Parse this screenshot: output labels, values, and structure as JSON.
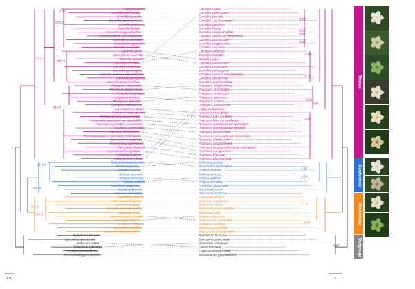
{
  "left_tree": {
    "taxa": [
      "Camellia huana",
      "Camellia tuberculata",
      "Camellia fluviatilis",
      "Camellia szechuanensis",
      "Camellia luteoflora",
      "Camellia flavida",
      "Camellia longipedicellata",
      "Camellia pitardii var compressa",
      "Camellia assimiloides",
      "Camellia fangpinensis",
      "Camellia cuspidata",
      "Camellia grijsii",
      "Camellia semiserrata",
      "Camellia fluviatilis",
      "Camellia cordifolia",
      "Camellia longissima",
      "Camellia gymnogyna",
      "Camellia sinensis var pubilimba",
      "Camellia pilosperma",
      "Camellia ampelovitifolia",
      "Polyspora chrysandra",
      "Polyspora dalgleishiana",
      "Polyspora longicarpa",
      "Polyspora axillaris",
      "Polyspora speciosa",
      "Polyspora hainanensis",
      "Apterosperma oblata",
      "Pyrenaria hirta var hirta",
      "Pyrenaria hirta var cordatula",
      "Pyrenaria spectabilis var spectabilis",
      "Pyrenaria spectabilis var greenlei",
      "Pyrenaria jonquierana",
      "Pyrenaria shinkoensis",
      "Pyrenaria jonquierana subsp multisepala",
      "Pyrenaria menglaensis",
      "Pyrenaria pingpienensis",
      "Pyrenaria khasiana",
      "Pyrenaria oblongicarpa",
      "Laplacea fruticosa",
      "Apterosperma oblata",
      "Schima brevipedicellata",
      "Schima argentea",
      "Schima superba",
      "Schima sericans",
      "Schima noronhae",
      "Schima wallichii",
      "Franklinia alatamaha",
      "Gordonia brevisii",
      "Gordonia lasianthus",
      "Stewartia sinensis",
      "Stewartia rubiginosa",
      "Stewartia rostrata",
      "Stewartia pseudocamellia",
      "Stewartia ovata",
      "Stewartia pteropetiolata",
      "Stewartia calcicola",
      "Stewartia cordifolia",
      "Stewartia crassifolia",
      "Stewartia malacodendron",
      "Symplocos tinctoria",
      "Symplocos paniculata",
      "Galax urceolata",
      "Sinojackia xylocarpa",
      "Eurya acuminatissima",
      "Ternstroemia gymnanthera"
    ],
    "support": [
      "1/1.0",
      "97/1.0",
      "95/1.0",
      "98/1.0",
      "72/0.84",
      "91/1.0",
      "95/1.0",
      "99/1.0"
    ]
  },
  "right_tree": {
    "taxa": [
      "Camellia huana",
      "Camellia tuberculata",
      "Camellia fluviatilis",
      "Camellia szechuanensis",
      "Camellia luteoflora",
      "Camellia flavida",
      "Camellia longipedicellata",
      "Camellia pitardii var compressa",
      "Camellia assimiloides",
      "Camellia fangpinensis",
      "Camellia cuspidata",
      "Camellia cordifolia",
      "Camellia fluviatilis",
      "Camellia grijsii",
      "Camellia semiserrata",
      "Camellia longissima",
      "Camellia gymnogyna",
      "Camellia sinensis var pubilimba",
      "Camellia pilosperma",
      "Camellia ampelovitifolia",
      "Polyspora dalgleishiana",
      "Polyspora chrysandra",
      "Polyspora longicarpa",
      "Polyspora speciosa",
      "Polyspora axillaris",
      "Polyspora hainanensis",
      "Laplacea fruticosa",
      "Apterosperma oblata",
      "Pyrenaria hirta var hirta",
      "Pyrenaria hirta var cordatula",
      "Pyrenaria spectabilis var spectabilis",
      "Pyrenaria spectabilis var greenlei",
      "Pyrenaria jonquierana",
      "Pyrenaria microcarpa var microcarpa",
      "Pyrenaria shinkoensis",
      "Pyrenaria pingpienensis",
      "Pyrenaria jonquierana subsp multisepala",
      "Pyrenaria menglaensis",
      "Pyrenaria khasiana",
      "Pyrenaria oblongicarpa",
      "Schima argentea",
      "Schima brevipedicellata",
      "Schima superba",
      "Schima sericans",
      "Schima wallichii",
      "Schima noronhae",
      "Franklinia alatamaha",
      "Gordonia brevisii",
      "Gordonia lasianthus",
      "Stewartia sinensis",
      "Stewartia rubiginosa",
      "Stewartia rostrata",
      "Stewartia pseudocamellia",
      "Stewartia ovata",
      "Stewartia calcicola",
      "Stewartia pteropetiolata",
      "Stewartia cordifolia",
      "Stewartia crassifolia",
      "Stewartia malacodendron",
      "Symplocos tinctoria",
      "Symplocos paniculata",
      "Sinojackia xylocarpa",
      "Galax urceolata",
      "Eurya acuminatissima",
      "Ternstroemia gymnanthera"
    ],
    "support": [
      "0.99",
      "0.52",
      "0.65",
      "0.94",
      "0.68",
      "0.72",
      "0.93",
      "0.35",
      "0.82",
      "0.97",
      "0.84",
      "0.61",
      "0.93",
      "0.87"
    ]
  },
  "scale_left": "0.01",
  "scale_right": "2",
  "bands": [
    "Theeae",
    "Gordonieae",
    "Stewartieae",
    "Outgroup"
  ],
  "colors": {
    "Theeae": "#c0178f",
    "Gordonieae": "#2f6fd6",
    "Stewartieae": "#f08a20",
    "Outgroup": "#888888",
    "text": "#222222",
    "tree_black": "#333333"
  }
}
